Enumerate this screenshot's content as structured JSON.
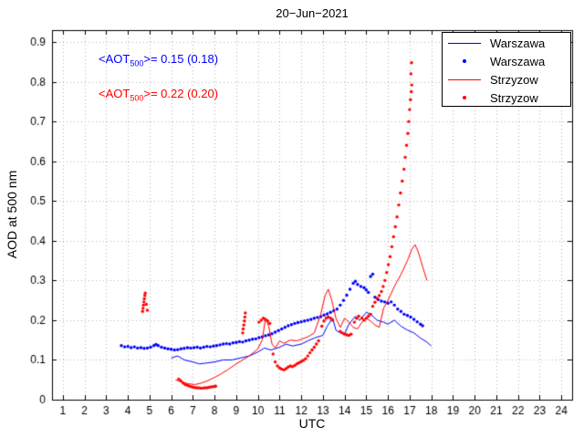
{
  "colors": {
    "warszawa": "#0000ff",
    "strzyzow": "#ff0000",
    "grid": "#b4b4b4",
    "axes": "#000000"
  },
  "chart_data": {
    "type": "line",
    "title": "20−Jun−2021",
    "xlabel": "UTC",
    "ylabel": "AOD at 500 nm",
    "xlim": [
      0.5,
      24.5
    ],
    "ylim": [
      0,
      0.93
    ],
    "xticks": [
      1,
      2,
      3,
      4,
      5,
      6,
      7,
      8,
      9,
      10,
      11,
      12,
      13,
      14,
      15,
      16,
      17,
      18,
      19,
      20,
      21,
      22,
      23,
      24
    ],
    "yticks": [
      0,
      0.1,
      0.2,
      0.3,
      0.4,
      0.5,
      0.6,
      0.7,
      0.8,
      0.9
    ],
    "grid": true,
    "grid_color": "#b4b4b4",
    "legend_position": "top-right",
    "annotations": [
      {
        "pre": "<AOT",
        "sub": "500",
        "post": ">= 0.15 (0.18)",
        "mean": 0.15,
        "paren": 0.18,
        "color": "#0000ff"
      },
      {
        "pre": "<AOT",
        "sub": "500",
        "post": ">= 0.22 (0.20)",
        "mean": 0.22,
        "paren": 0.2,
        "color": "#ff0000"
      }
    ],
    "series": [
      {
        "name": "Warszawa",
        "style": "line",
        "color": "#0000ff",
        "points": [
          [
            6.0,
            0.105
          ],
          [
            6.3,
            0.11
          ],
          [
            6.6,
            0.1
          ],
          [
            7.0,
            0.095
          ],
          [
            7.3,
            0.09
          ],
          [
            7.6,
            0.092
          ],
          [
            8.0,
            0.095
          ],
          [
            8.4,
            0.1
          ],
          [
            8.8,
            0.1
          ],
          [
            9.2,
            0.105
          ],
          [
            9.6,
            0.11
          ],
          [
            10.0,
            0.12
          ],
          [
            10.3,
            0.13
          ],
          [
            10.6,
            0.125
          ],
          [
            11.0,
            0.132
          ],
          [
            11.3,
            0.14
          ],
          [
            11.6,
            0.135
          ],
          [
            12.0,
            0.14
          ],
          [
            12.3,
            0.148
          ],
          [
            12.6,
            0.155
          ],
          [
            13.0,
            0.162
          ],
          [
            13.2,
            0.185
          ],
          [
            13.45,
            0.205
          ],
          [
            13.6,
            0.175
          ],
          [
            13.8,
            0.168
          ],
          [
            14.0,
            0.165
          ],
          [
            14.2,
            0.19
          ],
          [
            14.5,
            0.21
          ],
          [
            14.7,
            0.2
          ],
          [
            15.0,
            0.22
          ],
          [
            15.2,
            0.215
          ],
          [
            15.5,
            0.2
          ],
          [
            15.8,
            0.195
          ],
          [
            16.0,
            0.19
          ],
          [
            16.3,
            0.2
          ],
          [
            16.6,
            0.185
          ],
          [
            16.9,
            0.175
          ],
          [
            17.2,
            0.168
          ],
          [
            17.5,
            0.155
          ],
          [
            17.8,
            0.145
          ],
          [
            18.0,
            0.135
          ]
        ]
      },
      {
        "name": "Warszawa",
        "style": "scatter",
        "color": "#0000ff",
        "points": [
          [
            3.7,
            0.136
          ],
          [
            3.85,
            0.133
          ],
          [
            4.0,
            0.134
          ],
          [
            4.15,
            0.131
          ],
          [
            4.3,
            0.133
          ],
          [
            4.45,
            0.13
          ],
          [
            4.6,
            0.131
          ],
          [
            4.75,
            0.129
          ],
          [
            4.9,
            0.13
          ],
          [
            5.05,
            0.132
          ],
          [
            5.2,
            0.136
          ],
          [
            5.3,
            0.139
          ],
          [
            5.4,
            0.136
          ],
          [
            5.55,
            0.132
          ],
          [
            5.7,
            0.13
          ],
          [
            5.85,
            0.128
          ],
          [
            6.0,
            0.127
          ],
          [
            6.15,
            0.125
          ],
          [
            6.3,
            0.126
          ],
          [
            6.45,
            0.128
          ],
          [
            6.6,
            0.129
          ],
          [
            6.75,
            0.131
          ],
          [
            6.9,
            0.13
          ],
          [
            7.05,
            0.131
          ],
          [
            7.2,
            0.132
          ],
          [
            7.35,
            0.13
          ],
          [
            7.5,
            0.132
          ],
          [
            7.65,
            0.134
          ],
          [
            7.8,
            0.133
          ],
          [
            7.95,
            0.135
          ],
          [
            8.1,
            0.136
          ],
          [
            8.25,
            0.138
          ],
          [
            8.4,
            0.14
          ],
          [
            8.55,
            0.141
          ],
          [
            8.7,
            0.14
          ],
          [
            8.85,
            0.143
          ],
          [
            9.0,
            0.144
          ],
          [
            9.15,
            0.146
          ],
          [
            9.3,
            0.145
          ],
          [
            9.45,
            0.148
          ],
          [
            9.6,
            0.15
          ],
          [
            9.75,
            0.152
          ],
          [
            9.9,
            0.153
          ],
          [
            10.05,
            0.156
          ],
          [
            10.2,
            0.158
          ],
          [
            10.35,
            0.161
          ],
          [
            10.5,
            0.163
          ],
          [
            10.65,
            0.166
          ],
          [
            10.8,
            0.17
          ],
          [
            10.95,
            0.174
          ],
          [
            11.1,
            0.178
          ],
          [
            11.25,
            0.182
          ],
          [
            11.4,
            0.186
          ],
          [
            11.55,
            0.189
          ],
          [
            11.7,
            0.192
          ],
          [
            11.85,
            0.194
          ],
          [
            12.0,
            0.196
          ],
          [
            12.15,
            0.198
          ],
          [
            12.3,
            0.2
          ],
          [
            12.45,
            0.202
          ],
          [
            12.6,
            0.205
          ],
          [
            12.75,
            0.207
          ],
          [
            12.9,
            0.209
          ],
          [
            13.05,
            0.213
          ],
          [
            13.2,
            0.216
          ],
          [
            13.35,
            0.22
          ],
          [
            13.5,
            0.224
          ],
          [
            13.65,
            0.228
          ],
          [
            13.8,
            0.238
          ],
          [
            13.95,
            0.25
          ],
          [
            14.1,
            0.263
          ],
          [
            14.25,
            0.278
          ],
          [
            14.4,
            0.293
          ],
          [
            14.5,
            0.298
          ],
          [
            14.6,
            0.29
          ],
          [
            14.75,
            0.285
          ],
          [
            14.9,
            0.282
          ],
          [
            15.0,
            0.276
          ],
          [
            15.1,
            0.27
          ],
          [
            15.2,
            0.31
          ],
          [
            15.3,
            0.316
          ],
          [
            15.4,
            0.258
          ],
          [
            15.55,
            0.252
          ],
          [
            15.7,
            0.248
          ],
          [
            15.85,
            0.246
          ],
          [
            16.0,
            0.243
          ],
          [
            16.15,
            0.246
          ],
          [
            16.3,
            0.238
          ],
          [
            16.45,
            0.228
          ],
          [
            16.6,
            0.222
          ],
          [
            16.75,
            0.215
          ],
          [
            16.9,
            0.212
          ],
          [
            17.05,
            0.208
          ],
          [
            17.2,
            0.202
          ],
          [
            17.35,
            0.196
          ],
          [
            17.5,
            0.19
          ],
          [
            17.6,
            0.186
          ]
        ]
      },
      {
        "name": "Strzyzow",
        "style": "line",
        "color": "#ff0000",
        "points": [
          [
            6.2,
            0.05
          ],
          [
            6.5,
            0.044
          ],
          [
            6.8,
            0.04
          ],
          [
            7.1,
            0.038
          ],
          [
            7.4,
            0.042
          ],
          [
            7.7,
            0.048
          ],
          [
            8.0,
            0.056
          ],
          [
            8.3,
            0.065
          ],
          [
            8.6,
            0.075
          ],
          [
            9.0,
            0.09
          ],
          [
            9.3,
            0.1
          ],
          [
            9.6,
            0.11
          ],
          [
            10.0,
            0.128
          ],
          [
            10.2,
            0.15
          ],
          [
            10.35,
            0.205
          ],
          [
            10.5,
            0.185
          ],
          [
            10.65,
            0.14
          ],
          [
            10.8,
            0.13
          ],
          [
            11.0,
            0.148
          ],
          [
            11.2,
            0.142
          ],
          [
            11.5,
            0.15
          ],
          [
            11.8,
            0.148
          ],
          [
            12.0,
            0.152
          ],
          [
            12.3,
            0.158
          ],
          [
            12.6,
            0.168
          ],
          [
            12.9,
            0.215
          ],
          [
            13.1,
            0.262
          ],
          [
            13.25,
            0.278
          ],
          [
            13.4,
            0.252
          ],
          [
            13.6,
            0.205
          ],
          [
            13.8,
            0.182
          ],
          [
            14.0,
            0.205
          ],
          [
            14.2,
            0.195
          ],
          [
            14.4,
            0.182
          ],
          [
            14.6,
            0.178
          ],
          [
            14.8,
            0.195
          ],
          [
            15.0,
            0.205
          ],
          [
            15.2,
            0.198
          ],
          [
            15.4,
            0.188
          ],
          [
            15.6,
            0.182
          ],
          [
            15.8,
            0.23
          ],
          [
            16.0,
            0.25
          ],
          [
            16.3,
            0.285
          ],
          [
            16.6,
            0.315
          ],
          [
            16.9,
            0.35
          ],
          [
            17.1,
            0.378
          ],
          [
            17.25,
            0.39
          ],
          [
            17.4,
            0.372
          ],
          [
            17.6,
            0.335
          ],
          [
            17.8,
            0.3
          ]
        ]
      },
      {
        "name": "Strzyzow",
        "style": "scatter",
        "color": "#ff0000",
        "points": [
          [
            4.68,
            0.222
          ],
          [
            4.7,
            0.23
          ],
          [
            4.72,
            0.238
          ],
          [
            4.74,
            0.246
          ],
          [
            4.76,
            0.254
          ],
          [
            4.78,
            0.262
          ],
          [
            4.8,
            0.268
          ],
          [
            4.85,
            0.24
          ],
          [
            4.9,
            0.225
          ],
          [
            6.35,
            0.052
          ],
          [
            6.45,
            0.047
          ],
          [
            6.55,
            0.042
          ],
          [
            6.65,
            0.038
          ],
          [
            6.75,
            0.036
          ],
          [
            6.85,
            0.034
          ],
          [
            6.95,
            0.032
          ],
          [
            7.05,
            0.031
          ],
          [
            7.15,
            0.03
          ],
          [
            7.25,
            0.03
          ],
          [
            7.35,
            0.029
          ],
          [
            7.45,
            0.029
          ],
          [
            7.55,
            0.03
          ],
          [
            7.65,
            0.03
          ],
          [
            7.75,
            0.031
          ],
          [
            7.85,
            0.032
          ],
          [
            7.95,
            0.033
          ],
          [
            8.05,
            0.034
          ],
          [
            9.3,
            0.168
          ],
          [
            9.32,
            0.178
          ],
          [
            9.35,
            0.188
          ],
          [
            9.38,
            0.198
          ],
          [
            9.4,
            0.208
          ],
          [
            9.42,
            0.218
          ],
          [
            10.05,
            0.195
          ],
          [
            10.15,
            0.2
          ],
          [
            10.25,
            0.205
          ],
          [
            10.35,
            0.202
          ],
          [
            10.45,
            0.198
          ],
          [
            10.55,
            0.192
          ],
          [
            10.7,
            0.115
          ],
          [
            10.8,
            0.095
          ],
          [
            10.9,
            0.085
          ],
          [
            11.0,
            0.08
          ],
          [
            11.1,
            0.077
          ],
          [
            11.2,
            0.075
          ],
          [
            11.3,
            0.078
          ],
          [
            11.4,
            0.082
          ],
          [
            11.5,
            0.085
          ],
          [
            11.6,
            0.083
          ],
          [
            11.7,
            0.086
          ],
          [
            11.8,
            0.09
          ],
          [
            11.9,
            0.093
          ],
          [
            12.0,
            0.096
          ],
          [
            12.1,
            0.099
          ],
          [
            12.2,
            0.103
          ],
          [
            12.3,
            0.11
          ],
          [
            12.4,
            0.118
          ],
          [
            12.5,
            0.125
          ],
          [
            12.6,
            0.132
          ],
          [
            12.7,
            0.14
          ],
          [
            12.8,
            0.148
          ],
          [
            12.95,
            0.185
          ],
          [
            13.05,
            0.198
          ],
          [
            13.15,
            0.205
          ],
          [
            13.25,
            0.208
          ],
          [
            13.35,
            0.205
          ],
          [
            13.45,
            0.2
          ],
          [
            13.8,
            0.172
          ],
          [
            13.9,
            0.168
          ],
          [
            14.0,
            0.165
          ],
          [
            14.1,
            0.163
          ],
          [
            14.2,
            0.162
          ],
          [
            14.3,
            0.165
          ],
          [
            14.45,
            0.195
          ],
          [
            14.55,
            0.205
          ],
          [
            14.65,
            0.21
          ],
          [
            14.8,
            0.205
          ],
          [
            14.9,
            0.2
          ],
          [
            15.0,
            0.205
          ],
          [
            15.1,
            0.21
          ],
          [
            15.2,
            0.215
          ],
          [
            15.3,
            0.235
          ],
          [
            15.4,
            0.245
          ],
          [
            15.5,
            0.255
          ],
          [
            15.6,
            0.262
          ],
          [
            15.7,
            0.272
          ],
          [
            15.78,
            0.285
          ],
          [
            15.86,
            0.3
          ],
          [
            15.94,
            0.32
          ],
          [
            16.02,
            0.34
          ],
          [
            16.1,
            0.36
          ],
          [
            16.18,
            0.385
          ],
          [
            16.26,
            0.41
          ],
          [
            16.34,
            0.435
          ],
          [
            16.42,
            0.46
          ],
          [
            16.5,
            0.49
          ],
          [
            16.58,
            0.52
          ],
          [
            16.66,
            0.55
          ],
          [
            16.74,
            0.58
          ],
          [
            16.8,
            0.61
          ],
          [
            16.86,
            0.64
          ],
          [
            16.92,
            0.67
          ],
          [
            16.96,
            0.7
          ],
          [
            17.0,
            0.73
          ],
          [
            17.04,
            0.755
          ],
          [
            17.08,
            0.775
          ],
          [
            17.1,
            0.792
          ],
          [
            17.06,
            0.82
          ],
          [
            17.09,
            0.848
          ]
        ]
      }
    ]
  }
}
